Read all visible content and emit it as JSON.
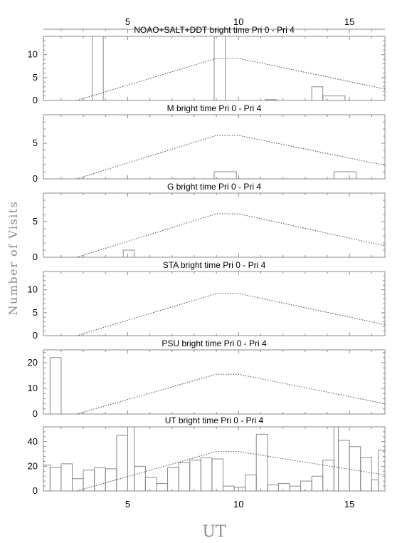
{
  "chart_data": {
    "type": "histogram-panels",
    "xlabel": "UT",
    "ylabel": "Number of Visits",
    "xlim": [
      1.2,
      16.6
    ],
    "xticks": [
      5,
      10,
      15
    ],
    "title_suffix": "bright time Pri 0 - Pri 4",
    "panels": [
      {
        "name": "NOAO+SALT+DDT",
        "ylim": [
          0,
          14
        ],
        "yticks": [
          0,
          5,
          10
        ],
        "bins": [
          {
            "x0": 3.4,
            "x1": 3.9,
            "value": 14
          },
          {
            "x0": 8.9,
            "x1": 9.4,
            "value": 14
          },
          {
            "x0": 11.2,
            "x1": 11.7,
            "value": 0.2
          },
          {
            "x0": 13.3,
            "x1": 13.8,
            "value": 3
          },
          {
            "x0": 13.8,
            "x1": 14.8,
            "value": 1
          }
        ],
        "model": [
          [
            2.7,
            0
          ],
          [
            9.0,
            9.2
          ],
          [
            10.0,
            9.2
          ],
          [
            16.6,
            2.5
          ]
        ]
      },
      {
        "name": "M",
        "ylim": [
          0,
          9
        ],
        "yticks": [
          0,
          5
        ],
        "bins": [
          {
            "x0": 8.9,
            "x1": 9.9,
            "value": 1
          },
          {
            "x0": 14.3,
            "x1": 15.3,
            "value": 1
          }
        ],
        "model": [
          [
            2.7,
            0
          ],
          [
            9.0,
            6.1
          ],
          [
            10.0,
            6.1
          ],
          [
            16.6,
            1.9
          ]
        ]
      },
      {
        "name": "G",
        "ylim": [
          0,
          9
        ],
        "yticks": [
          0,
          5
        ],
        "bins": [
          {
            "x0": 4.8,
            "x1": 5.3,
            "value": 1
          }
        ],
        "model": [
          [
            2.7,
            0
          ],
          [
            9.0,
            6.1
          ],
          [
            10.0,
            6.1
          ],
          [
            16.6,
            1.6
          ]
        ]
      },
      {
        "name": "STA",
        "ylim": [
          0,
          14
        ],
        "yticks": [
          0,
          5,
          10
        ],
        "bins": [],
        "model": [
          [
            2.7,
            0
          ],
          [
            9.0,
            9.2
          ],
          [
            10.0,
            9.2
          ],
          [
            16.6,
            2.4
          ]
        ]
      },
      {
        "name": "PSU",
        "ylim": [
          0,
          25
        ],
        "yticks": [
          0,
          10,
          20
        ],
        "bins": [
          {
            "x0": 1.5,
            "x1": 2.0,
            "value": 22
          }
        ],
        "model": [
          [
            2.7,
            0
          ],
          [
            9.0,
            15.5
          ],
          [
            10.0,
            15.5
          ],
          [
            16.6,
            4
          ]
        ]
      },
      {
        "name": "UT",
        "ylim": [
          0,
          52
        ],
        "yticks": [
          0,
          20,
          40
        ],
        "bins": [
          {
            "x0": 1.2,
            "x1": 1.5,
            "value": 21
          },
          {
            "x0": 1.5,
            "x1": 2.0,
            "value": 19
          },
          {
            "x0": 2.0,
            "x1": 2.5,
            "value": 22
          },
          {
            "x0": 2.5,
            "x1": 3.0,
            "value": 10
          },
          {
            "x0": 3.0,
            "x1": 3.5,
            "value": 17
          },
          {
            "x0": 3.5,
            "x1": 4.0,
            "value": 19
          },
          {
            "x0": 4.0,
            "x1": 4.5,
            "value": 18
          },
          {
            "x0": 4.5,
            "x1": 5.0,
            "value": 45
          },
          {
            "x0": 5.0,
            "x1": 5.3,
            "value": 52
          },
          {
            "x0": 5.3,
            "x1": 5.8,
            "value": 20
          },
          {
            "x0": 5.8,
            "x1": 6.3,
            "value": 11
          },
          {
            "x0": 6.3,
            "x1": 6.8,
            "value": 6
          },
          {
            "x0": 6.8,
            "x1": 7.3,
            "value": 19
          },
          {
            "x0": 7.3,
            "x1": 7.8,
            "value": 23
          },
          {
            "x0": 7.8,
            "x1": 8.3,
            "value": 25
          },
          {
            "x0": 8.3,
            "x1": 8.8,
            "value": 27
          },
          {
            "x0": 8.8,
            "x1": 9.3,
            "value": 26
          },
          {
            "x0": 9.3,
            "x1": 9.8,
            "value": 4
          },
          {
            "x0": 9.8,
            "x1": 10.3,
            "value": 3
          },
          {
            "x0": 10.3,
            "x1": 10.8,
            "value": 13
          },
          {
            "x0": 10.8,
            "x1": 11.3,
            "value": 46
          },
          {
            "x0": 11.3,
            "x1": 11.8,
            "value": 5
          },
          {
            "x0": 11.8,
            "x1": 12.3,
            "value": 6
          },
          {
            "x0": 12.3,
            "x1": 12.8,
            "value": 4
          },
          {
            "x0": 12.8,
            "x1": 13.3,
            "value": 8
          },
          {
            "x0": 13.3,
            "x1": 13.8,
            "value": 12
          },
          {
            "x0": 13.8,
            "x1": 14.3,
            "value": 25
          },
          {
            "x0": 14.3,
            "x1": 14.5,
            "value": 52
          },
          {
            "x0": 14.5,
            "x1": 15.0,
            "value": 41
          },
          {
            "x0": 15.0,
            "x1": 15.5,
            "value": 36
          },
          {
            "x0": 15.5,
            "x1": 16.0,
            "value": 27
          },
          {
            "x0": 16.0,
            "x1": 16.3,
            "value": 9
          },
          {
            "x0": 16.3,
            "x1": 16.6,
            "value": 33
          }
        ],
        "model": [
          [
            2.7,
            0
          ],
          [
            9.0,
            32
          ],
          [
            10.0,
            32
          ],
          [
            16.6,
            13
          ]
        ]
      }
    ]
  }
}
